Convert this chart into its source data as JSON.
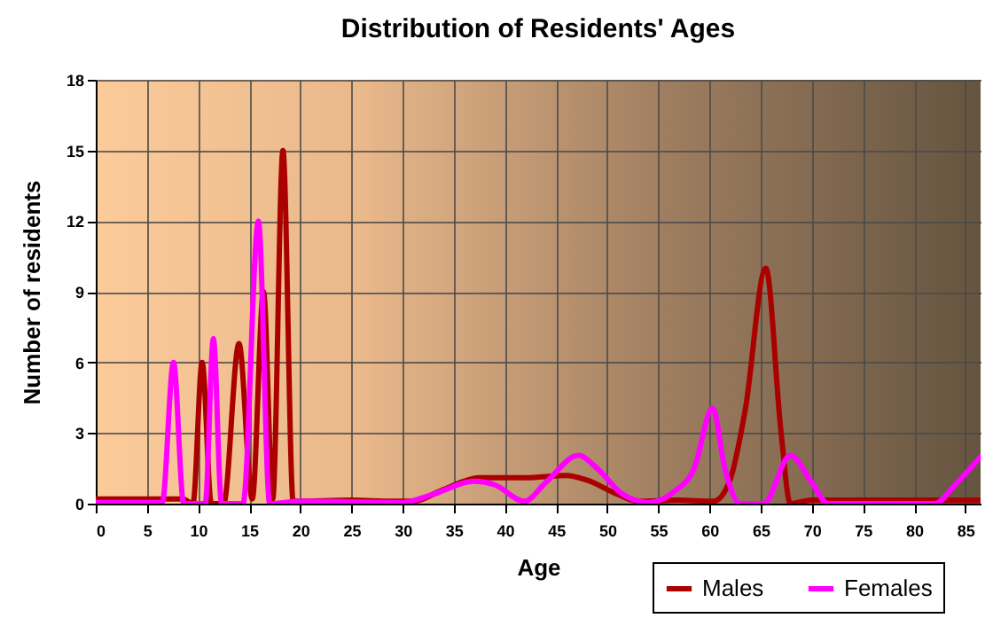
{
  "chart_data": {
    "type": "line",
    "title": "Distribution of Residents' Ages",
    "xlabel": "Age",
    "ylabel": "Number of residents",
    "xlim": [
      0,
      86.5
    ],
    "xticks": [
      0,
      5,
      10,
      15,
      20,
      25,
      30,
      35,
      40,
      45,
      50,
      55,
      60,
      65,
      70,
      75,
      80,
      85
    ],
    "ylim": [
      0,
      18
    ],
    "yticks": [
      0,
      3,
      6,
      9,
      12,
      15,
      18
    ],
    "grid": true,
    "legend": "bottom right",
    "marker": "none",
    "line_style": "solid",
    "series": [
      {
        "name": "Males",
        "color": "#aa0000",
        "x": [
          0,
          8.5,
          9.5,
          10.4,
          11.3,
          12.5,
          14,
          15.3,
          16.4,
          17.3,
          18.3,
          19.3,
          25,
          29,
          31,
          34,
          37.5,
          42,
          46,
          48,
          51,
          53,
          57,
          60.4,
          62,
          63.5,
          65.5,
          67,
          67.9,
          70,
          86.5
        ],
        "values": [
          0.2,
          0.2,
          0,
          6,
          0,
          0,
          6.8,
          0.2,
          9,
          0.2,
          15,
          0.1,
          0.15,
          0.1,
          0.1,
          0.6,
          1.1,
          1.1,
          1.2,
          1.0,
          0.4,
          0.1,
          0.15,
          0.1,
          1,
          4,
          10,
          3,
          0,
          0.15,
          0.15
        ]
      },
      {
        "name": "Females",
        "color": "#ff00ff",
        "x": [
          0,
          6.5,
          7.6,
          8.6,
          10.7,
          11.5,
          12.3,
          14.4,
          15.9,
          17,
          20,
          30,
          33,
          37,
          39,
          41.9,
          44,
          47.2,
          49,
          51.5,
          54,
          56.5,
          58.5,
          60.3,
          61.5,
          63,
          65.3,
          67.9,
          70,
          71.6,
          82,
          84,
          86.5
        ],
        "values": [
          0.05,
          0.05,
          6,
          0,
          0,
          7,
          0,
          0,
          12,
          0,
          0.1,
          0.05,
          0.4,
          0.95,
          0.8,
          0.1,
          0.9,
          2.05,
          1.5,
          0.4,
          0.05,
          0.5,
          1.5,
          4.05,
          1.5,
          0,
          0,
          2.05,
          0.9,
          0,
          0,
          0.8,
          2
        ]
      }
    ]
  }
}
